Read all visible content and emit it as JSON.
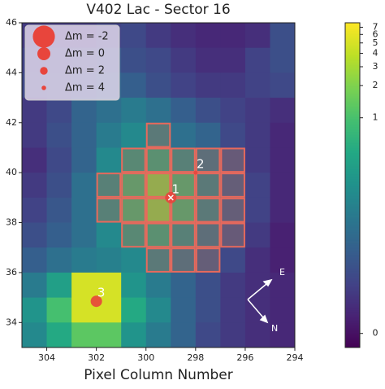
{
  "chart_data": {
    "type": "heatmap",
    "title": "V402 Lac - Sector 16",
    "x_label": "Pixel Column Number",
    "xlim": [
      305,
      294
    ],
    "ylim": [
      33,
      46
    ],
    "xticks": [
      304,
      302,
      300,
      298,
      296,
      294
    ],
    "yticks": [
      34,
      36,
      38,
      40,
      42,
      44,
      46
    ],
    "colormap": "viridis",
    "color_scale": "log",
    "log_shift": 0.01,
    "clim": [
      -0.0026,
      7.7
    ],
    "cbar_ticks": [
      0,
      1,
      2,
      3,
      4,
      5,
      6,
      7
    ],
    "z": [
      [
        0.014,
        0.014,
        0.014,
        0.019,
        0.024,
        0.014,
        0.009,
        0.006,
        0.006,
        0.009,
        0.029
      ],
      [
        0.019,
        0.024,
        0.029,
        0.038,
        0.029,
        0.024,
        0.014,
        0.009,
        0.009,
        0.019,
        0.029
      ],
      [
        0.024,
        0.029,
        0.038,
        0.058,
        0.049,
        0.029,
        0.019,
        0.014,
        0.014,
        0.019,
        0.024
      ],
      [
        0.014,
        0.024,
        0.058,
        0.085,
        0.12,
        0.085,
        0.049,
        0.029,
        0.019,
        0.014,
        0.009
      ],
      [
        0.014,
        0.029,
        0.058,
        0.12,
        0.18,
        0.18,
        0.085,
        0.058,
        0.024,
        0.014,
        0.006
      ],
      [
        0.009,
        0.024,
        0.058,
        0.18,
        0.35,
        0.49,
        0.25,
        0.12,
        0.049,
        0.014,
        0.006
      ],
      [
        0.014,
        0.029,
        0.085,
        0.25,
        0.69,
        1.8,
        0.69,
        0.18,
        0.058,
        0.019,
        0.006
      ],
      [
        0.019,
        0.038,
        0.085,
        0.25,
        0.69,
        1.8,
        0.69,
        0.18,
        0.058,
        0.019,
        0.006
      ],
      [
        0.029,
        0.049,
        0.085,
        0.18,
        0.35,
        0.49,
        0.25,
        0.12,
        0.049,
        0.014,
        0.004
      ],
      [
        0.049,
        0.085,
        0.12,
        0.14,
        0.18,
        0.18,
        0.12,
        0.058,
        0.024,
        0.009,
        0.004
      ],
      [
        0.12,
        0.35,
        5.0,
        5.0,
        0.25,
        0.12,
        0.058,
        0.029,
        0.014,
        0.009,
        0.006
      ],
      [
        0.25,
        0.96,
        5.0,
        5.0,
        0.49,
        0.18,
        0.058,
        0.029,
        0.014,
        0.009,
        0.006
      ],
      [
        0.18,
        0.49,
        1.3,
        1.3,
        0.25,
        0.12,
        0.058,
        0.024,
        0.014,
        0.009,
        0.006
      ]
    ],
    "stars": {
      "x": [
        299.0,
        298.0,
        302.0
      ],
      "y": [
        39.0,
        40.0,
        34.85
      ],
      "delta_m": [
        0.5,
        4.4,
        0.5
      ],
      "labels": [
        "1",
        "2",
        "3"
      ],
      "color": "#e8453c"
    },
    "legend": [
      {
        "value": -2,
        "label": "Δm =  -2"
      },
      {
        "value": 0,
        "label": "Δm =   0"
      },
      {
        "value": 2,
        "label": "Δm =   2"
      },
      {
        "value": 4,
        "label": "Δm =   4"
      }
    ],
    "compass": [
      "E",
      "N"
    ]
  }
}
